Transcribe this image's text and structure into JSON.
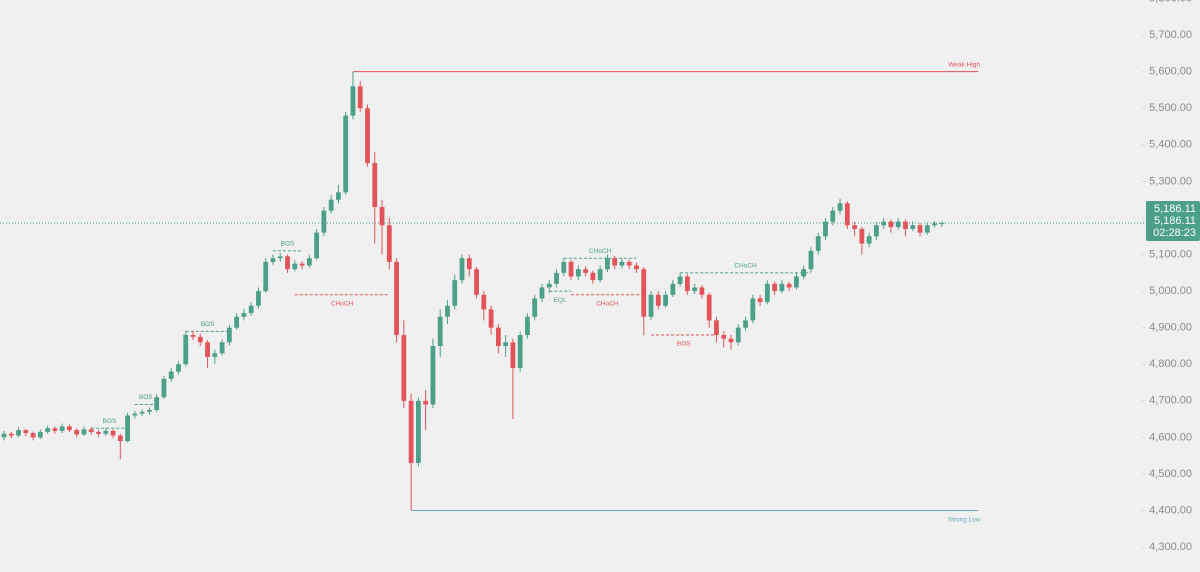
{
  "chart_data": {
    "type": "candlestick",
    "up_color": "#4c9f88",
    "down_color": "#e2545a",
    "ylim": [
      4232,
      5796
    ],
    "yticks": [
      {
        "value": 5800,
        "label": "5,800.00"
      },
      {
        "value": 5700,
        "label": "5,700.00"
      },
      {
        "value": 5600,
        "label": "5,600.00"
      },
      {
        "value": 5500,
        "label": "5,500.00"
      },
      {
        "value": 5400,
        "label": "5,400.00"
      },
      {
        "value": 5300,
        "label": "5,300.00"
      },
      {
        "value": 5200,
        "label": "5,200.00"
      },
      {
        "value": 5100,
        "label": "5,100.00"
      },
      {
        "value": 5000,
        "label": "5,000.00"
      },
      {
        "value": 4900,
        "label": "4,900.00"
      },
      {
        "value": 4800,
        "label": "4,800.00"
      },
      {
        "value": 4700,
        "label": "4,700.00"
      },
      {
        "value": 4600,
        "label": "4,600.00"
      },
      {
        "value": 4500,
        "label": "4,500.00"
      },
      {
        "value": 4400,
        "label": "4,400.00"
      },
      {
        "value": 4300,
        "label": "4,300.00"
      }
    ],
    "last_price": {
      "value": 5186.11,
      "label": "5,186.11"
    },
    "countdown": "02:28:23",
    "candles": [
      [
        4600,
        4618,
        4592,
        4610
      ],
      [
        4610,
        4615,
        4598,
        4605
      ],
      [
        4605,
        4628,
        4600,
        4620
      ],
      [
        4620,
        4624,
        4604,
        4612
      ],
      [
        4612,
        4616,
        4592,
        4600
      ],
      [
        4600,
        4622,
        4596,
        4615
      ],
      [
        4615,
        4632,
        4610,
        4625
      ],
      [
        4625,
        4630,
        4610,
        4618
      ],
      [
        4618,
        4638,
        4612,
        4630
      ],
      [
        4630,
        4636,
        4614,
        4620
      ],
      [
        4620,
        4625,
        4600,
        4608
      ],
      [
        4608,
        4630,
        4604,
        4622
      ],
      [
        4622,
        4628,
        4608,
        4615
      ],
      [
        4615,
        4620,
        4602,
        4610
      ],
      [
        4610,
        4626,
        4604,
        4618
      ],
      [
        4618,
        4622,
        4598,
        4605
      ],
      [
        4605,
        4610,
        4540,
        4590
      ],
      [
        4590,
        4668,
        4586,
        4660
      ],
      [
        4660,
        4672,
        4652,
        4665
      ],
      [
        4665,
        4676,
        4658,
        4670
      ],
      [
        4670,
        4682,
        4662,
        4675
      ],
      [
        4675,
        4718,
        4670,
        4710
      ],
      [
        4710,
        4768,
        4705,
        4760
      ],
      [
        4760,
        4790,
        4752,
        4780
      ],
      [
        4780,
        4808,
        4772,
        4800
      ],
      [
        4800,
        4890,
        4795,
        4880
      ],
      [
        4880,
        4892,
        4866,
        4875
      ],
      [
        4875,
        4884,
        4850,
        4860
      ],
      [
        4860,
        4866,
        4790,
        4820
      ],
      [
        4820,
        4840,
        4800,
        4830
      ],
      [
        4830,
        4868,
        4824,
        4860
      ],
      [
        4860,
        4908,
        4852,
        4900
      ],
      [
        4900,
        4940,
        4894,
        4930
      ],
      [
        4930,
        4952,
        4920,
        4940
      ],
      [
        4940,
        4970,
        4932,
        4960
      ],
      [
        4960,
        5010,
        4952,
        5000
      ],
      [
        5000,
        5090,
        4996,
        5080
      ],
      [
        5080,
        5100,
        5072,
        5090
      ],
      [
        5090,
        5104,
        5080,
        5095
      ],
      [
        5095,
        5100,
        5050,
        5060
      ],
      [
        5060,
        5084,
        5054,
        5075
      ],
      [
        5075,
        5082,
        5060,
        5070
      ],
      [
        5070,
        5098,
        5064,
        5090
      ],
      [
        5090,
        5170,
        5086,
        5160
      ],
      [
        5160,
        5230,
        5150,
        5220
      ],
      [
        5220,
        5262,
        5212,
        5250
      ],
      [
        5250,
        5290,
        5240,
        5270
      ],
      [
        5270,
        5490,
        5264,
        5480
      ],
      [
        5480,
        5600,
        5470,
        5560
      ],
      [
        5560,
        5575,
        5490,
        5500
      ],
      [
        5500,
        5510,
        5340,
        5350
      ],
      [
        5350,
        5380,
        5130,
        5230
      ],
      [
        5230,
        5250,
        5100,
        5180
      ],
      [
        5180,
        5200,
        5060,
        5080
      ],
      [
        5080,
        5090,
        4860,
        4880
      ],
      [
        4880,
        4920,
        4680,
        4700
      ],
      [
        4700,
        4720,
        4400,
        4530
      ],
      [
        4530,
        4710,
        4520,
        4700
      ],
      [
        4700,
        4730,
        4620,
        4690
      ],
      [
        4690,
        4870,
        4680,
        4850
      ],
      [
        4850,
        4950,
        4820,
        4930
      ],
      [
        4930,
        4975,
        4910,
        4960
      ],
      [
        4960,
        5045,
        4950,
        5030
      ],
      [
        5030,
        5100,
        5020,
        5090
      ],
      [
        5090,
        5100,
        5040,
        5060
      ],
      [
        5060,
        5066,
        4980,
        4990
      ],
      [
        4990,
        5000,
        4920,
        4950
      ],
      [
        4950,
        4960,
        4880,
        4900
      ],
      [
        4900,
        4910,
        4830,
        4850
      ],
      [
        4850,
        4880,
        4820,
        4860
      ],
      [
        4860,
        4870,
        4650,
        4790
      ],
      [
        4790,
        4890,
        4780,
        4880
      ],
      [
        4880,
        4940,
        4870,
        4930
      ],
      [
        4930,
        4990,
        4920,
        4980
      ],
      [
        4980,
        5020,
        4970,
        5010
      ],
      [
        5010,
        5030,
        4995,
        5020
      ],
      [
        5020,
        5060,
        5010,
        5050
      ],
      [
        5050,
        5090,
        5040,
        5080
      ],
      [
        5080,
        5086,
        5030,
        5040
      ],
      [
        5040,
        5070,
        5030,
        5060
      ],
      [
        5060,
        5068,
        5040,
        5050
      ],
      [
        5050,
        5056,
        5020,
        5030
      ],
      [
        5030,
        5070,
        5024,
        5060
      ],
      [
        5060,
        5100,
        5052,
        5090
      ],
      [
        5090,
        5096,
        5060,
        5070
      ],
      [
        5070,
        5090,
        5062,
        5080
      ],
      [
        5080,
        5086,
        5060,
        5070
      ],
      [
        5070,
        5078,
        5050,
        5060
      ],
      [
        5060,
        5066,
        4880,
        4930
      ],
      [
        4930,
        5000,
        4920,
        4990
      ],
      [
        4990,
        5000,
        4950,
        4960
      ],
      [
        4960,
        5000,
        4954,
        4990
      ],
      [
        4990,
        5030,
        4984,
        5020
      ],
      [
        5020,
        5050,
        5012,
        5040
      ],
      [
        5040,
        5046,
        4990,
        5000
      ],
      [
        5000,
        5020,
        4992,
        5010
      ],
      [
        5010,
        5016,
        4980,
        4990
      ],
      [
        4990,
        4996,
        4900,
        4920
      ],
      [
        4920,
        4930,
        4860,
        4880
      ],
      [
        4880,
        4890,
        4846,
        4870
      ],
      [
        4870,
        4880,
        4840,
        4860
      ],
      [
        4860,
        4910,
        4852,
        4900
      ],
      [
        4900,
        4930,
        4892,
        4920
      ],
      [
        4920,
        4990,
        4912,
        4980
      ],
      [
        4980,
        4990,
        4960,
        4970
      ],
      [
        4970,
        5030,
        4964,
        5020
      ],
      [
        5020,
        5026,
        4990,
        5000
      ],
      [
        5000,
        5030,
        4994,
        5020
      ],
      [
        5020,
        5026,
        5000,
        5010
      ],
      [
        5010,
        5050,
        5004,
        5040
      ],
      [
        5040,
        5070,
        5032,
        5060
      ],
      [
        5060,
        5120,
        5052,
        5110
      ],
      [
        5110,
        5160,
        5100,
        5150
      ],
      [
        5150,
        5200,
        5140,
        5190
      ],
      [
        5190,
        5230,
        5180,
        5220
      ],
      [
        5220,
        5252,
        5210,
        5240
      ],
      [
        5240,
        5246,
        5170,
        5180
      ],
      [
        5180,
        5190,
        5150,
        5170
      ],
      [
        5170,
        5176,
        5100,
        5130
      ],
      [
        5130,
        5160,
        5120,
        5150
      ],
      [
        5150,
        5190,
        5140,
        5180
      ],
      [
        5180,
        5200,
        5170,
        5190
      ],
      [
        5190,
        5196,
        5160,
        5175
      ],
      [
        5175,
        5200,
        5168,
        5190
      ],
      [
        5190,
        5196,
        5150,
        5170
      ],
      [
        5170,
        5190,
        5164,
        5180
      ],
      [
        5180,
        5186,
        5150,
        5160
      ],
      [
        5160,
        5188,
        5154,
        5180
      ],
      [
        5180,
        5192,
        5174,
        5185
      ],
      [
        5185,
        5190,
        5176,
        5186.11
      ]
    ],
    "annotations": [
      {
        "label": "BOS",
        "level": 4625,
        "from": 12,
        "to": 17,
        "color": "#4c9f88",
        "style": "dashed",
        "label_position": "above"
      },
      {
        "label": "BOS",
        "level": 4690,
        "from": 18,
        "to": 21,
        "color": "#4c9f88",
        "style": "dashed",
        "label_position": "above"
      },
      {
        "label": "BOS",
        "level": 4890,
        "from": 25,
        "to": 31,
        "color": "#4c9f88",
        "style": "dashed",
        "label_position": "above"
      },
      {
        "label": "BOS",
        "level": 5110,
        "from": 37,
        "to": 41,
        "color": "#4c9f88",
        "style": "dashed",
        "label_position": "above"
      },
      {
        "label": "CHoCH",
        "level": 4990,
        "from": 40,
        "to": 53,
        "color": "#e2545a",
        "style": "dashed",
        "label_position": "below"
      },
      {
        "label": "Weak High",
        "level": 5600,
        "from": 48,
        "to": 134,
        "color": "#e2545a",
        "style": "solid",
        "label_position": "above-end"
      },
      {
        "label": "Strong Low",
        "level": 4400,
        "from": 56,
        "to": 134,
        "color": "#6aa7b5",
        "style": "solid",
        "label_position": "below-end"
      },
      {
        "label": "EQL",
        "level": 5000,
        "from": 75,
        "to": 78,
        "color": "#4c9f88",
        "style": "dashed",
        "label_position": "below"
      },
      {
        "label": "CHoCH",
        "level": 5090,
        "from": 77,
        "to": 87,
        "color": "#4c9f88",
        "style": "dashed",
        "label_position": "above"
      },
      {
        "label": "CHoCH",
        "level": 4990,
        "from": 78,
        "to": 88,
        "color": "#e2545a",
        "style": "dashed",
        "label_position": "below"
      },
      {
        "label": "BOS",
        "level": 4880,
        "from": 89,
        "to": 98,
        "color": "#e2545a",
        "style": "dashed",
        "label_position": "below"
      },
      {
        "label": "CHoCH",
        "level": 5050,
        "from": 93,
        "to": 111,
        "color": "#4c9f88",
        "style": "dashed",
        "label_position": "above"
      }
    ]
  }
}
